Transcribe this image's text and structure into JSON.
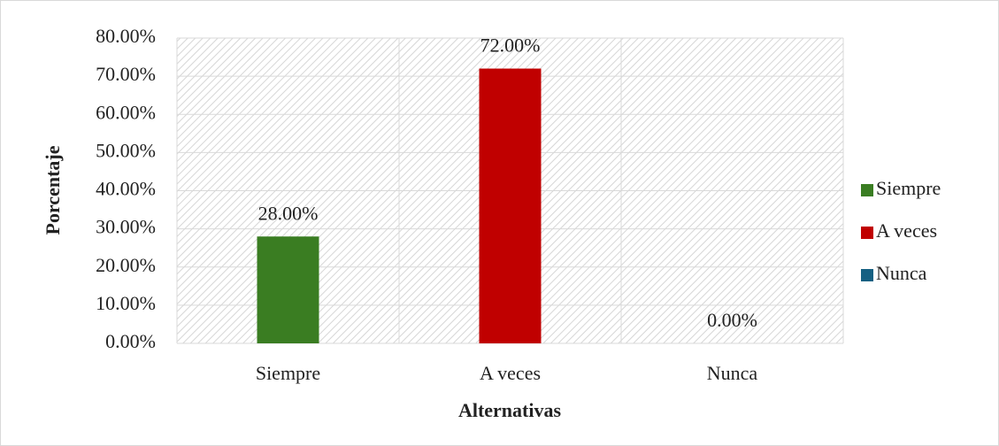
{
  "chart_data": {
    "type": "bar",
    "categories": [
      "Siempre",
      "A veces",
      "Nunca"
    ],
    "values": [
      28,
      72,
      0
    ],
    "value_labels": [
      "28.00%",
      "72.00%",
      "0.00%"
    ],
    "colors": [
      "#3a7d22",
      "#c00000",
      "#156082"
    ],
    "xlabel": "Alternativas",
    "ylabel": "Porcentaje",
    "ylim": [
      0,
      80
    ],
    "yticks": [
      {
        "value": 0,
        "label": "0.00%"
      },
      {
        "value": 10,
        "label": "10.00%"
      },
      {
        "value": 20,
        "label": "20.00%"
      },
      {
        "value": 30,
        "label": "30.00%"
      },
      {
        "value": 40,
        "label": "40.00%"
      },
      {
        "value": 50,
        "label": "50.00%"
      },
      {
        "value": 60,
        "label": "60.00%"
      },
      {
        "value": 70,
        "label": "70.00%"
      },
      {
        "value": 80,
        "label": "80.00%"
      }
    ],
    "grid": true,
    "legend": "right"
  }
}
